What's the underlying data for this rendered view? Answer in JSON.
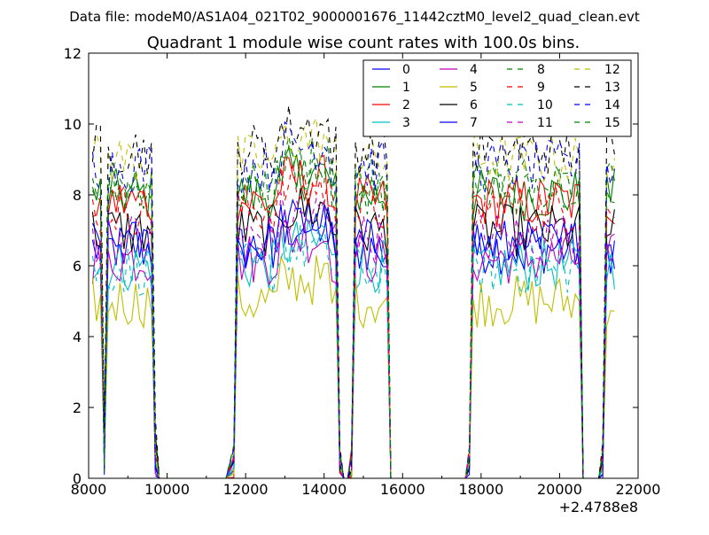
{
  "header": "Data file: modeM0/AS1A04_021T02_9000001676_11442cztM0_level2_quad_clean.evt",
  "chart_data": {
    "type": "line",
    "title": "Quadrant 1 module wise count rates with 100.0s bins.",
    "xlabel": "",
    "ylabel": "",
    "x_offset_label": "+2.4788e8",
    "xlim": [
      8000,
      22000
    ],
    "ylim": [
      0,
      12
    ],
    "xticks": [
      8000,
      10000,
      12000,
      14000,
      16000,
      18000,
      20000,
      22000
    ],
    "yticks": [
      0,
      2,
      4,
      6,
      8,
      10,
      12
    ],
    "grid": false,
    "legend_position": "top-right",
    "x": [
      8100,
      8200,
      8300,
      8400,
      8500,
      8600,
      8700,
      8800,
      8900,
      9000,
      9100,
      9200,
      9300,
      9400,
      9500,
      9600,
      9700,
      9800,
      9900,
      10000,
      10500,
      11000,
      11500,
      11700,
      11800,
      11900,
      12000,
      12100,
      12200,
      12300,
      12400,
      12500,
      12600,
      12700,
      12800,
      12900,
      13000,
      13100,
      13200,
      13300,
      13400,
      13500,
      13600,
      13700,
      13800,
      13900,
      14000,
      14100,
      14200,
      14300,
      14400,
      14500,
      14600,
      14700,
      14800,
      14900,
      15000,
      15100,
      15200,
      15300,
      15400,
      15500,
      15600,
      15700,
      16000,
      16500,
      17000,
      17500,
      17600,
      17700,
      17800,
      17900,
      18000,
      18100,
      18200,
      18300,
      18400,
      18500,
      18600,
      18700,
      18800,
      18900,
      19000,
      19100,
      19200,
      19300,
      19400,
      19500,
      19600,
      19700,
      19800,
      19900,
      20000,
      20100,
      20200,
      20300,
      20400,
      20500,
      20600,
      20700,
      20800,
      20900,
      21000,
      21100,
      21200,
      21300,
      21400
    ],
    "series": [
      {
        "name": "0",
        "color": "#0000ff",
        "dash": "solid",
        "base": 6.5
      },
      {
        "name": "1",
        "color": "#008000",
        "dash": "solid",
        "base": 8.0
      },
      {
        "name": "2",
        "color": "#ff0000",
        "dash": "solid",
        "base": 7.8
      },
      {
        "name": "3",
        "color": "#00bfbf",
        "dash": "solid",
        "base": 6.0
      },
      {
        "name": "4",
        "color": "#bf00bf",
        "dash": "solid",
        "base": 6.2
      },
      {
        "name": "5",
        "color": "#bfbf00",
        "dash": "solid",
        "base": 5.0
      },
      {
        "name": "6",
        "color": "#000000",
        "dash": "solid",
        "base": 7.0
      },
      {
        "name": "7",
        "color": "#0000ff",
        "dash": "solid",
        "base": 6.6
      },
      {
        "name": "8",
        "color": "#008000",
        "dash": "dashed",
        "base": 8.4
      },
      {
        "name": "9",
        "color": "#ff0000",
        "dash": "dashed",
        "base": 7.6
      },
      {
        "name": "10",
        "color": "#00bfbf",
        "dash": "dashed",
        "base": 5.9
      },
      {
        "name": "11",
        "color": "#bf00bf",
        "dash": "dashed",
        "base": 6.8
      },
      {
        "name": "12",
        "color": "#bfbf00",
        "dash": "dashed",
        "base": 9.0
      },
      {
        "name": "13",
        "color": "#000000",
        "dash": "dashed",
        "base": 9.3
      },
      {
        "name": "14",
        "color": "#0000ff",
        "dash": "dashed",
        "base": 8.8
      },
      {
        "name": "15",
        "color": "#008000",
        "dash": "dashed",
        "base": 8.2
      }
    ]
  }
}
